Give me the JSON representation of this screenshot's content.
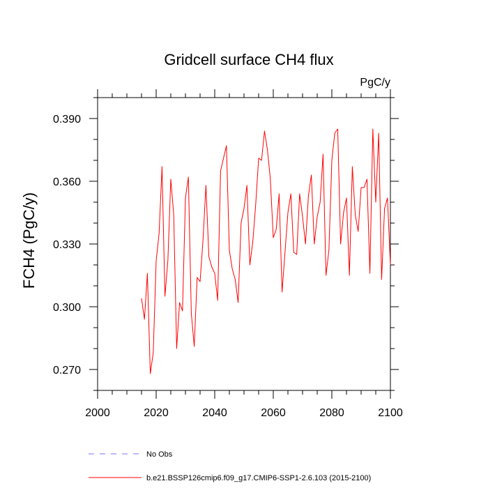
{
  "chart_data": {
    "type": "line",
    "title": "Gridcell surface CH4 flux",
    "units_label": "PgC/y",
    "xlabel": "",
    "ylabel": "FCH4  (PgC/y)",
    "xlim": [
      2000,
      2100
    ],
    "ylim": [
      0.26,
      0.4
    ],
    "x_ticks": [
      2000,
      2020,
      2040,
      2060,
      2080,
      2100
    ],
    "x_tick_labels": [
      "2000",
      "2020",
      "2040",
      "2060",
      "2080",
      "2100"
    ],
    "y_ticks": [
      0.27,
      0.3,
      0.33,
      0.36,
      0.39
    ],
    "y_tick_labels": [
      "0.270",
      "0.300",
      "0.330",
      "0.360",
      "0.390"
    ],
    "series": [
      {
        "name": "b.e21.BSSP126cmip6.f09_g17.CMIP6-SSP1-2.6.103 (2015-2100)",
        "color": "#ff0000",
        "x": [
          2015,
          2016,
          2017,
          2018,
          2019,
          2020,
          2021,
          2022,
          2023,
          2024,
          2025,
          2026,
          2027,
          2028,
          2029,
          2030,
          2031,
          2032,
          2033,
          2034,
          2035,
          2036,
          2037,
          2038,
          2039,
          2040,
          2041,
          2042,
          2043,
          2044,
          2045,
          2046,
          2047,
          2048,
          2049,
          2050,
          2051,
          2052,
          2053,
          2054,
          2055,
          2056,
          2057,
          2058,
          2059,
          2060,
          2061,
          2062,
          2063,
          2064,
          2065,
          2066,
          2067,
          2068,
          2069,
          2070,
          2071,
          2072,
          2073,
          2074,
          2075,
          2076,
          2077,
          2078,
          2079,
          2080,
          2081,
          2082,
          2083,
          2084,
          2085,
          2086,
          2087,
          2088,
          2089,
          2090,
          2091,
          2092,
          2093,
          2094,
          2095,
          2096,
          2097,
          2098,
          2099,
          2100
        ],
        "values": [
          0.304,
          0.294,
          0.316,
          0.268,
          0.278,
          0.322,
          0.335,
          0.367,
          0.305,
          0.322,
          0.361,
          0.344,
          0.28,
          0.302,
          0.298,
          0.352,
          0.362,
          0.297,
          0.281,
          0.314,
          0.312,
          0.332,
          0.358,
          0.324,
          0.319,
          0.316,
          0.303,
          0.365,
          0.371,
          0.377,
          0.327,
          0.318,
          0.313,
          0.302,
          0.34,
          0.347,
          0.358,
          0.32,
          0.331,
          0.349,
          0.371,
          0.37,
          0.384,
          0.375,
          0.361,
          0.333,
          0.337,
          0.354,
          0.307,
          0.326,
          0.345,
          0.354,
          0.326,
          0.325,
          0.354,
          0.343,
          0.33,
          0.353,
          0.363,
          0.33,
          0.343,
          0.35,
          0.373,
          0.315,
          0.327,
          0.37,
          0.383,
          0.385,
          0.33,
          0.345,
          0.352,
          0.315,
          0.367,
          0.344,
          0.336,
          0.357,
          0.357,
          0.361,
          0.316,
          0.385,
          0.35,
          0.383,
          0.313,
          0.347,
          0.352,
          0.32
        ]
      }
    ],
    "legend": [
      {
        "label": "No Obs",
        "color": "#7777ff",
        "style": "dashed"
      },
      {
        "label": "b.e21.BSSP126cmip6.f09_g17.CMIP6-SSP1-2.6.103 (2015-2100)",
        "color": "#ff0000",
        "style": "solid"
      }
    ]
  }
}
